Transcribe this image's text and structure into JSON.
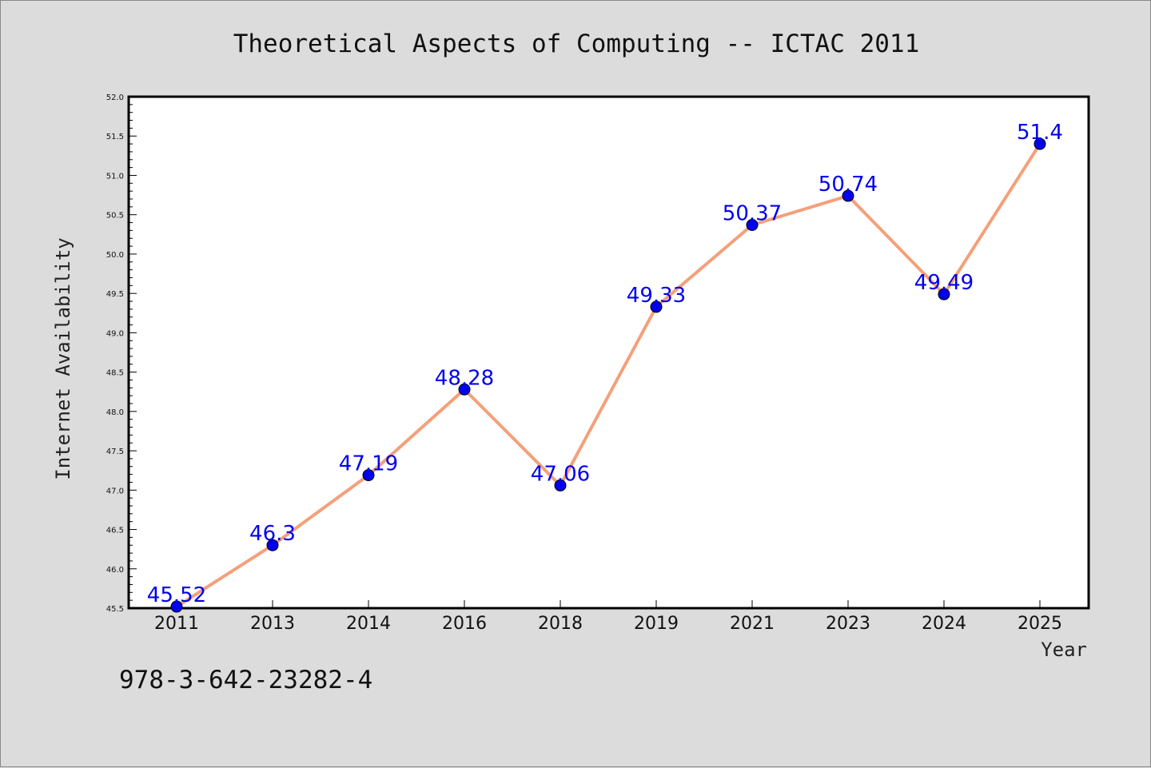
{
  "footer": {
    "isbn": "978-3-642-23282-4"
  },
  "chart_data": {
    "type": "line",
    "title": "Theoretical Aspects of Computing -- ICTAC 2011",
    "xlabel": "Year",
    "ylabel": "Internet Availability",
    "categories": [
      "2011",
      "2013",
      "2014",
      "2016",
      "2018",
      "2019",
      "2021",
      "2023",
      "2024",
      "2025"
    ],
    "series": [
      {
        "values": [
          45.52,
          46.3,
          47.19,
          48.28,
          47.06,
          49.33,
          50.37,
          50.74,
          49.49,
          51.4
        ],
        "labels": [
          "45.52",
          "46.3",
          "47.19",
          "48.28",
          "47.06",
          "49.33",
          "50.37",
          "50.74",
          "49.49",
          "51.4"
        ],
        "line_color": "#f4a07a",
        "marker_color": "#0000ee"
      }
    ],
    "ylim": [
      45.5,
      52.0
    ],
    "yticks": [
      "45.5",
      "46.0",
      "46.5",
      "47.0",
      "47.5",
      "48.0",
      "48.5",
      "49.0",
      "49.5",
      "50.0",
      "50.5",
      "51.0",
      "51.5",
      "52.0"
    ],
    "label_color": "#0000ee",
    "plot_background": "#ffffff",
    "grid": false,
    "legend": "none"
  }
}
